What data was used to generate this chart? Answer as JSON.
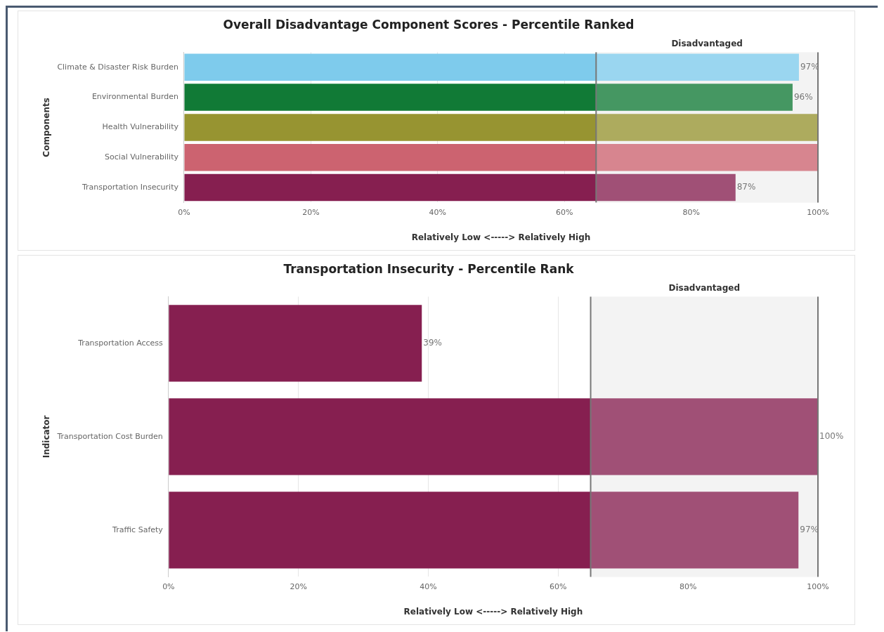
{
  "chart_data": [
    {
      "type": "bar",
      "orientation": "horizontal",
      "title": "Overall Disadvantage Component Scores - Percentile Ranked",
      "xlabel": "Relatively Low <-----> Relatively High",
      "ylabel": "Components",
      "categories": [
        "Climate & Disaster Risk Burden",
        "Environmental Burden",
        "Health Vulnerability",
        "Social Vulnerability",
        "Transportation Insecurity"
      ],
      "values": [
        97,
        96,
        100,
        100,
        87
      ],
      "colors": [
        "#7ecbec",
        "#117a36",
        "#979431",
        "#cc6370",
        "#861f50"
      ],
      "value_labels": [
        "97%",
        "96%",
        null,
        null,
        "87%"
      ],
      "xlim": [
        0,
        100
      ],
      "xticks": [
        {
          "value": 0,
          "label": "0%"
        },
        {
          "value": 20,
          "label": "20%"
        },
        {
          "value": 40,
          "label": "40%"
        },
        {
          "value": 60,
          "label": "60%"
        },
        {
          "value": 80,
          "label": "80%"
        },
        {
          "value": 100,
          "label": "100%"
        }
      ],
      "grid": "x",
      "legend": false,
      "ref_lines": [
        {
          "axis": "x",
          "value": 65,
          "color": "#777777"
        }
      ],
      "bands": [
        {
          "axis": "x",
          "from": 65,
          "to": 100,
          "label": "Disadvantaged",
          "color": "#f0f0f0"
        }
      ]
    },
    {
      "type": "bar",
      "orientation": "horizontal",
      "title": "Transportation Insecurity - Percentile Rank",
      "xlabel": "Relatively Low <-----> Relatively High",
      "ylabel": "Indicator",
      "categories": [
        "Transportation Access",
        "Transportation Cost Burden",
        "Traffic Safety"
      ],
      "values": [
        39,
        100,
        97
      ],
      "colors": [
        "#861f50",
        "#861f50",
        "#861f50"
      ],
      "value_labels": [
        "39%",
        "100%",
        "97%"
      ],
      "xlim": [
        0,
        100
      ],
      "xticks": [
        {
          "value": 0,
          "label": "0%"
        },
        {
          "value": 20,
          "label": "20%"
        },
        {
          "value": 40,
          "label": "40%"
        },
        {
          "value": 60,
          "label": "60%"
        },
        {
          "value": 80,
          "label": "80%"
        },
        {
          "value": 100,
          "label": "100%"
        }
      ],
      "grid": "x",
      "legend": false,
      "ref_lines": [
        {
          "axis": "x",
          "value": 65,
          "color": "#777777"
        }
      ],
      "bands": [
        {
          "axis": "x",
          "from": 65,
          "to": 100,
          "label": "Disadvantaged",
          "color": "#f0f0f0"
        }
      ]
    }
  ]
}
